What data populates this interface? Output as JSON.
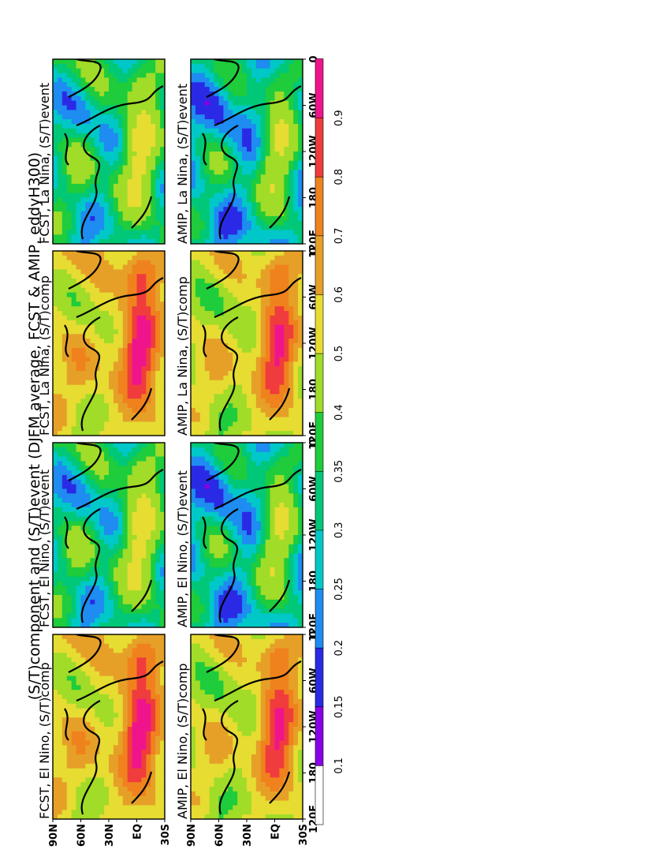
{
  "chart_data": {
    "type": "heatmap",
    "orientation": "page rotated 90 degrees counter-clockwise",
    "title": "(S/T)component and (S/T)event (DJFM average, FCST & AMIP, eddyH300)",
    "panels": [
      {
        "title": "FCST, El Nino, (S/T)comp"
      },
      {
        "title": "FCST, El Nino, (S/T)event"
      },
      {
        "title": "FCST, La Nina, (S/T)comp"
      },
      {
        "title": "FCST, La Nina, (S/T)event"
      },
      {
        "title": "AMIP, El Nino, (S/T)comp"
      },
      {
        "title": "AMIP, El Nino, (S/T)event"
      },
      {
        "title": "AMIP, La Nina, (S/T)comp"
      },
      {
        "title": "AMIP, La Nina, (S/T)event"
      }
    ],
    "lon_ticks": [
      "120E",
      "180",
      "120W",
      "60W",
      "0"
    ],
    "lat_ticks": [
      "90N",
      "60N",
      "30N",
      "EQ",
      "30S"
    ],
    "colorbar": {
      "ticks": [
        "0.1",
        "0.15",
        "0.2",
        "0.25",
        "0.3",
        "0.35",
        "0.4",
        "0.5",
        "0.6",
        "0.7",
        "0.8",
        "0.9"
      ],
      "colors": [
        "#ffffff",
        "#8a00e6",
        "#2a2ae6",
        "#1e8cf0",
        "#00c8c8",
        "#00c878",
        "#1ecc3c",
        "#a0dc28",
        "#e6dc32",
        "#e6a028",
        "#f0821e",
        "#f03c3c",
        "#f0148c"
      ]
    }
  }
}
